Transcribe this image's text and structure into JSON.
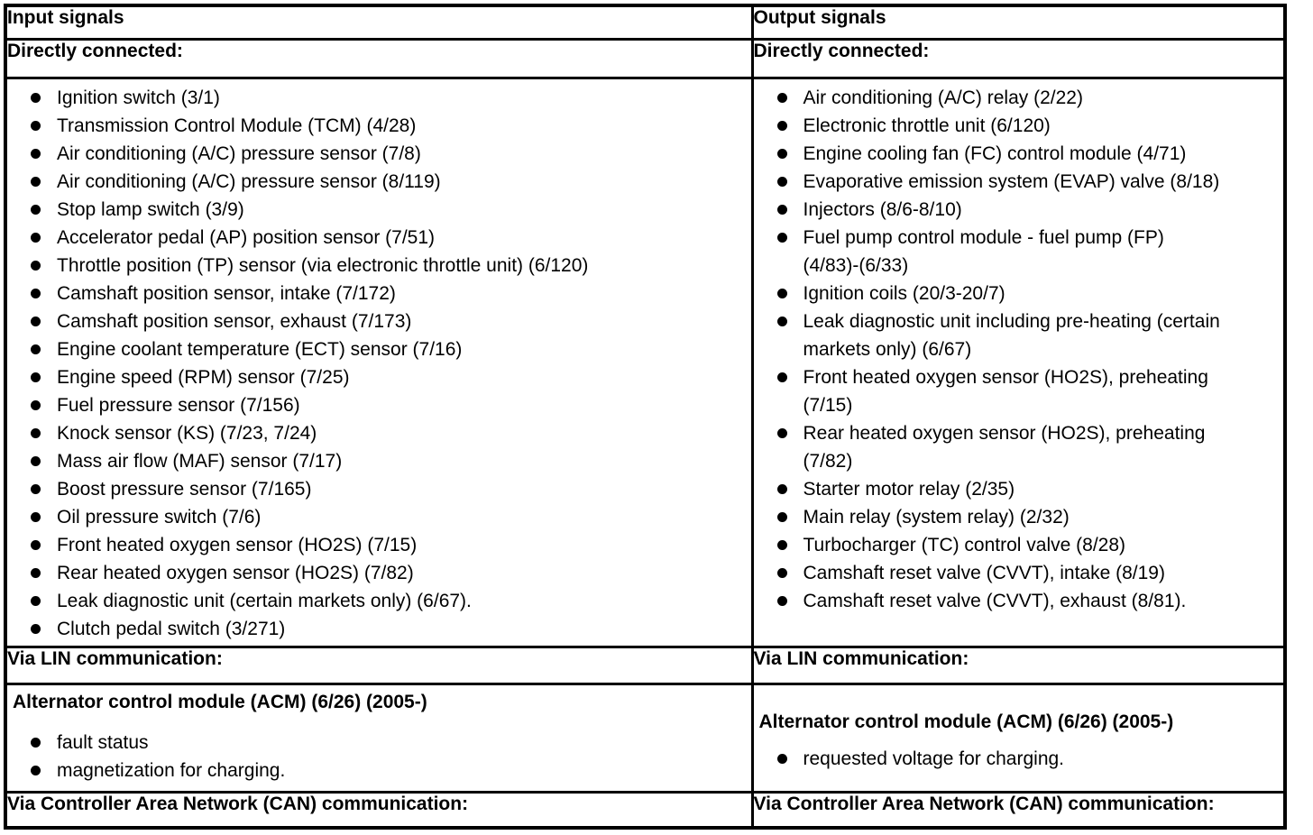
{
  "table": {
    "columns": [
      {
        "header": "Input signals",
        "directly_connected_label": "Directly connected:",
        "directly_connected_items": [
          "Ignition switch (3/1)",
          "Transmission Control Module (TCM) (4/28)",
          "Air conditioning (A/C) pressure sensor (7/8)",
          "Air conditioning (A/C) pressure sensor (8/119)",
          "Stop lamp switch (3/9)",
          "Accelerator pedal (AP) position sensor (7/51)",
          "Throttle position (TP) sensor (via electronic throttle unit) (6/120)",
          "Camshaft position sensor, intake (7/172)",
          "Camshaft position sensor, exhaust (7/173)",
          "Engine coolant temperature (ECT) sensor (7/16)",
          "Engine speed (RPM) sensor (7/25)",
          "Fuel pressure sensor (7/156)",
          "Knock sensor (KS) (7/23, 7/24)",
          "Mass air flow (MAF) sensor (7/17)",
          "Boost pressure sensor (7/165)",
          "Oil pressure switch (7/6)",
          "Front heated oxygen sensor (HO2S) (7/15)",
          "Rear heated oxygen sensor (HO2S) (7/82)",
          "Leak diagnostic unit (certain markets only) (6/67).",
          "Clutch pedal switch (3/271)"
        ],
        "via_lin_label": "Via LIN communication:",
        "lin_module_heading": "Alternator control module (ACM) (6/26) (2005-)",
        "lin_items": [
          "fault status",
          "magnetization for charging."
        ],
        "via_can_label": "Via Controller Area Network (CAN) communication:"
      },
      {
        "header": "Output signals",
        "directly_connected_label": "Directly connected:",
        "directly_connected_items": [
          "Air conditioning (A/C) relay (2/22)",
          "Electronic throttle unit (6/120)",
          "Engine cooling fan (FC) control module (4/71)",
          "Evaporative emission system (EVAP) valve (8/18)",
          "Injectors (8/6-8/10)",
          "Fuel pump control module - fuel pump (FP)\n(4/83)-(6/33)",
          "Ignition coils (20/3-20/7)",
          "Leak diagnostic unit including pre-heating (certain\nmarkets only) (6/67)",
          "Front heated oxygen sensor (HO2S), preheating\n(7/15)",
          "Rear heated oxygen sensor (HO2S), preheating\n(7/82)",
          "Starter motor relay (2/35)",
          "Main relay (system relay) (2/32)",
          "Turbocharger (TC) control valve (8/28)",
          "Camshaft reset valve (CVVT), intake (8/19)",
          "Camshaft reset valve (CVVT), exhaust (8/81)."
        ],
        "via_lin_label": "Via LIN communication:",
        "lin_module_heading": "Alternator control module (ACM) (6/26) (2005-)",
        "lin_items": [
          "requested voltage for charging."
        ],
        "via_can_label": "Via Controller Area Network (CAN) communication:"
      }
    ]
  }
}
